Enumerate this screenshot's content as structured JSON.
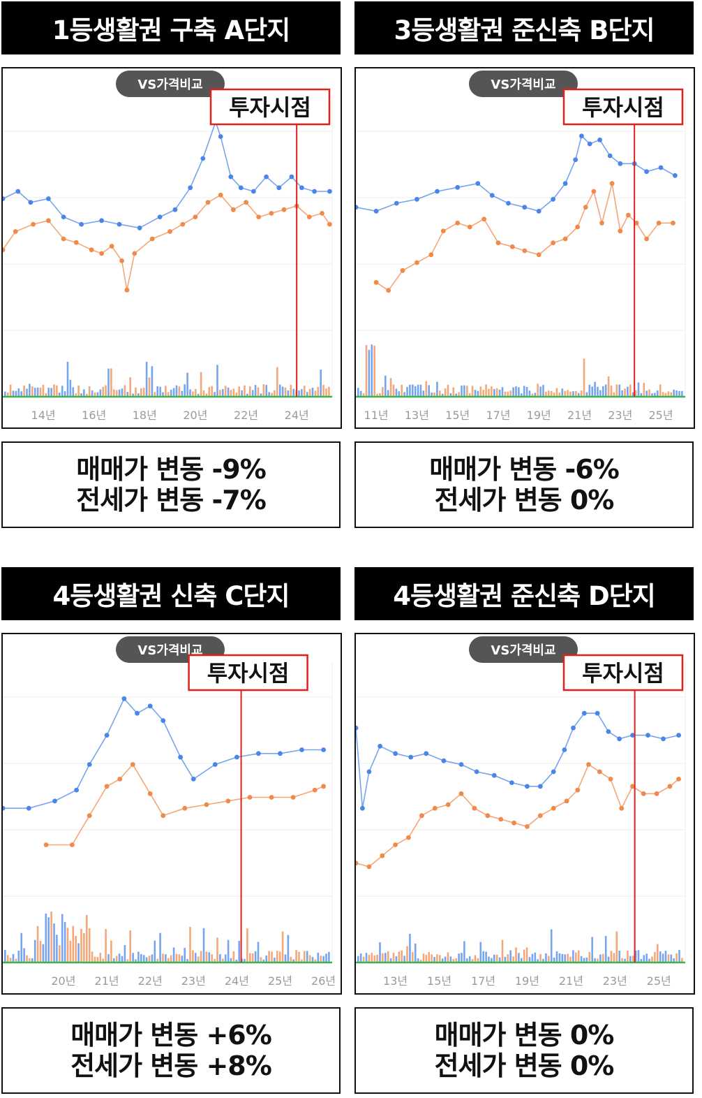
{
  "panels": [
    {
      "title": "1등생활권 구축 A단지",
      "badge": "VS가격비교",
      "invest_label": "투자시점",
      "result_lines": [
        "매매가 변동 -9%",
        "전세가 변동 -7%"
      ]
    },
    {
      "title": "3등생활권 준신축 B단지",
      "badge": "VS가격비교",
      "invest_label": "투자시점",
      "result_lines": [
        "매매가 변동 -6%",
        "전세가 변동 0%"
      ]
    },
    {
      "title": "4등생활권 신축 C단지",
      "badge": "VS가격비교",
      "invest_label": "투자시점",
      "result_lines": [
        "매매가 변동 +6%",
        "전세가 변동 +8%"
      ]
    },
    {
      "title": "4등생활권 준신축 D단지",
      "badge": "VS가격비교",
      "invest_label": "투자시점",
      "result_lines": [
        "매매가 변동 0%",
        "전세가 변동 0%"
      ]
    }
  ],
  "colors": {
    "sale": "#4a86e8",
    "jeonse": "#f08a4b",
    "marker": "#e0201a",
    "volume_green": "#3cb44b"
  },
  "chart_data": [
    {
      "type": "line",
      "x_ticks": [
        "14년",
        "16년",
        "18년",
        "20년",
        "22년",
        "24년"
      ],
      "x_range": [
        2012.4,
        2025.4
      ],
      "invest_point": 2024.0,
      "series": [
        {
          "values": [
            [
              2012.4,
              77
            ],
            [
              2013.0,
              79
            ],
            [
              2013.5,
              76
            ],
            [
              2014.2,
              77
            ],
            [
              2014.8,
              72
            ],
            [
              2015.5,
              70
            ],
            [
              2016.3,
              71
            ],
            [
              2017.0,
              70
            ],
            [
              2017.8,
              69
            ],
            [
              2018.6,
              72
            ],
            [
              2019.2,
              74
            ],
            [
              2019.8,
              80
            ],
            [
              2020.3,
              88
            ],
            [
              2020.8,
              98
            ],
            [
              2021.0,
              94
            ],
            [
              2021.4,
              83
            ],
            [
              2021.8,
              80
            ],
            [
              2022.3,
              79
            ],
            [
              2022.8,
              83
            ],
            [
              2023.3,
              80
            ],
            [
              2023.8,
              83
            ],
            [
              2024.2,
              80
            ],
            [
              2024.7,
              79
            ],
            [
              2025.3,
              79
            ]
          ]
        },
        {
          "values": [
            [
              2012.4,
              63
            ],
            [
              2012.9,
              68
            ],
            [
              2013.6,
              70
            ],
            [
              2014.2,
              71
            ],
            [
              2014.8,
              66
            ],
            [
              2015.3,
              65
            ],
            [
              2015.9,
              63
            ],
            [
              2016.3,
              62
            ],
            [
              2016.7,
              64
            ],
            [
              2017.1,
              60
            ],
            [
              2017.3,
              52
            ],
            [
              2017.6,
              62
            ],
            [
              2018.3,
              66
            ],
            [
              2019.0,
              68
            ],
            [
              2019.5,
              70
            ],
            [
              2020.0,
              72
            ],
            [
              2020.5,
              76
            ],
            [
              2021.0,
              78
            ],
            [
              2021.5,
              74
            ],
            [
              2022.0,
              76
            ],
            [
              2022.5,
              72
            ],
            [
              2023.0,
              73
            ],
            [
              2023.5,
              74
            ],
            [
              2024.0,
              75
            ],
            [
              2024.5,
              72
            ],
            [
              2025.0,
              73
            ],
            [
              2025.3,
              70
            ]
          ]
        }
      ],
      "y_range": [
        40,
        105
      ]
    },
    {
      "type": "line",
      "x_ticks": [
        "11년",
        "13년",
        "15년",
        "17년",
        "19년",
        "21년",
        "23년",
        "25년"
      ],
      "x_range": [
        2010.0,
        2026.2
      ],
      "invest_point": 2023.7,
      "series": [
        {
          "values": [
            [
              2010.0,
              72
            ],
            [
              2011.0,
              71
            ],
            [
              2012.0,
              73
            ],
            [
              2013.0,
              74
            ],
            [
              2014.0,
              76
            ],
            [
              2015.0,
              77
            ],
            [
              2016.0,
              78
            ],
            [
              2016.7,
              75
            ],
            [
              2017.5,
              73
            ],
            [
              2018.3,
              72
            ],
            [
              2019.0,
              71
            ],
            [
              2019.7,
              74
            ],
            [
              2020.3,
              78
            ],
            [
              2020.8,
              84
            ],
            [
              2021.1,
              90
            ],
            [
              2021.5,
              88
            ],
            [
              2022.0,
              89
            ],
            [
              2022.5,
              85
            ],
            [
              2023.0,
              83
            ],
            [
              2023.7,
              83
            ],
            [
              2024.3,
              81
            ],
            [
              2025.0,
              82
            ],
            [
              2025.7,
              80
            ]
          ]
        },
        {
          "values": [
            [
              2011.0,
              53
            ],
            [
              2011.6,
              51
            ],
            [
              2012.3,
              56
            ],
            [
              2013.0,
              58
            ],
            [
              2013.7,
              60
            ],
            [
              2014.3,
              66
            ],
            [
              2015.0,
              68
            ],
            [
              2015.6,
              67
            ],
            [
              2016.3,
              69
            ],
            [
              2017.0,
              63
            ],
            [
              2017.7,
              62
            ],
            [
              2018.3,
              61
            ],
            [
              2019.0,
              60
            ],
            [
              2019.7,
              63
            ],
            [
              2020.3,
              64
            ],
            [
              2020.9,
              67
            ],
            [
              2021.3,
              72
            ],
            [
              2021.7,
              76
            ],
            [
              2022.1,
              68
            ],
            [
              2022.6,
              78
            ],
            [
              2023.0,
              66
            ],
            [
              2023.4,
              70
            ],
            [
              2023.8,
              68
            ],
            [
              2024.3,
              64
            ],
            [
              2024.9,
              68
            ],
            [
              2025.6,
              68
            ]
          ]
        }
      ],
      "y_range": [
        40,
        100
      ]
    },
    {
      "type": "line",
      "x_ticks": [
        "20년",
        "21년",
        "22년",
        "23년",
        "24년",
        "25년",
        "26년"
      ],
      "x_range": [
        2018.6,
        2026.2
      ],
      "invest_point": 2024.1,
      "series": [
        {
          "values": [
            [
              2018.6,
              60
            ],
            [
              2019.2,
              60
            ],
            [
              2019.8,
              62
            ],
            [
              2020.3,
              65
            ],
            [
              2020.6,
              72
            ],
            [
              2021.0,
              80
            ],
            [
              2021.4,
              90
            ],
            [
              2021.7,
              86
            ],
            [
              2022.0,
              88
            ],
            [
              2022.3,
              84
            ],
            [
              2022.7,
              74
            ],
            [
              2023.0,
              68
            ],
            [
              2023.5,
              72
            ],
            [
              2024.0,
              74
            ],
            [
              2024.5,
              75
            ],
            [
              2025.0,
              75
            ],
            [
              2025.5,
              76
            ],
            [
              2026.0,
              76
            ]
          ]
        },
        {
          "values": [
            [
              2019.6,
              50
            ],
            [
              2020.2,
              50
            ],
            [
              2020.6,
              58
            ],
            [
              2021.0,
              66
            ],
            [
              2021.3,
              68
            ],
            [
              2021.6,
              72
            ],
            [
              2022.0,
              64
            ],
            [
              2022.3,
              58
            ],
            [
              2022.8,
              60
            ],
            [
              2023.3,
              61
            ],
            [
              2023.8,
              62
            ],
            [
              2024.3,
              63
            ],
            [
              2024.8,
              63
            ],
            [
              2025.3,
              63
            ],
            [
              2025.8,
              65
            ],
            [
              2026.0,
              66
            ]
          ]
        }
      ],
      "y_range": [
        35,
        100
      ]
    },
    {
      "type": "line",
      "x_ticks": [
        "13년",
        "15년",
        "17년",
        "19년",
        "21년",
        "23년",
        "25년"
      ],
      "x_range": [
        2011.2,
        2026.2
      ],
      "invest_point": 2023.9,
      "series": [
        {
          "values": [
            [
              2011.2,
              82
            ],
            [
              2011.5,
              60
            ],
            [
              2011.8,
              70
            ],
            [
              2012.3,
              77
            ],
            [
              2013.0,
              75
            ],
            [
              2013.7,
              74
            ],
            [
              2014.4,
              75
            ],
            [
              2015.2,
              73
            ],
            [
              2016.0,
              72
            ],
            [
              2016.7,
              70
            ],
            [
              2017.5,
              69
            ],
            [
              2018.3,
              67
            ],
            [
              2019.0,
              66
            ],
            [
              2019.6,
              66
            ],
            [
              2020.2,
              70
            ],
            [
              2020.7,
              76
            ],
            [
              2021.1,
              82
            ],
            [
              2021.6,
              86
            ],
            [
              2022.2,
              86
            ],
            [
              2022.7,
              81
            ],
            [
              2023.2,
              79
            ],
            [
              2023.8,
              80
            ],
            [
              2024.5,
              80
            ],
            [
              2025.2,
              79
            ],
            [
              2025.9,
              80
            ]
          ]
        },
        {
          "values": [
            [
              2011.2,
              45
            ],
            [
              2011.8,
              44
            ],
            [
              2012.4,
              47
            ],
            [
              2013.0,
              50
            ],
            [
              2013.6,
              52
            ],
            [
              2014.2,
              58
            ],
            [
              2014.8,
              60
            ],
            [
              2015.4,
              61
            ],
            [
              2016.0,
              64
            ],
            [
              2016.6,
              60
            ],
            [
              2017.2,
              58
            ],
            [
              2017.8,
              57
            ],
            [
              2018.4,
              56
            ],
            [
              2019.0,
              55
            ],
            [
              2019.6,
              58
            ],
            [
              2020.2,
              60
            ],
            [
              2020.8,
              62
            ],
            [
              2021.3,
              65
            ],
            [
              2021.8,
              72
            ],
            [
              2022.3,
              70
            ],
            [
              2022.8,
              68
            ],
            [
              2023.3,
              60
            ],
            [
              2023.8,
              66
            ],
            [
              2024.3,
              64
            ],
            [
              2024.9,
              64
            ],
            [
              2025.5,
              66
            ],
            [
              2025.9,
              68
            ]
          ]
        }
      ],
      "y_range": [
        35,
        100
      ]
    }
  ]
}
